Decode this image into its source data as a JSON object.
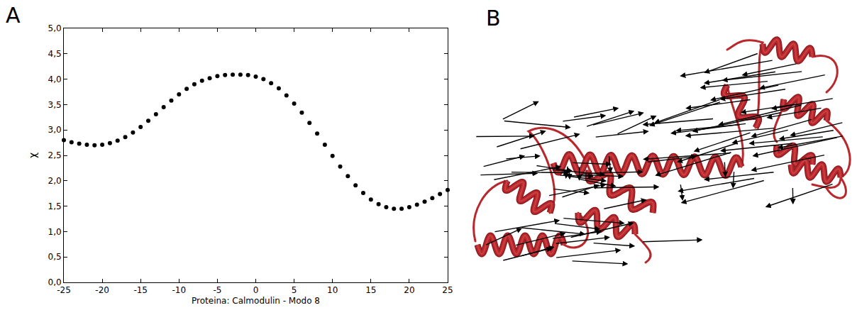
{
  "panel_labels": [
    "A",
    "B"
  ],
  "chart_data": {
    "type": "scatter",
    "x_label": "Proteina: Calmodulin - Modo 8",
    "y_label": "χ",
    "x": [
      -25,
      -24,
      -23,
      -22,
      -21,
      -20,
      -19,
      -18,
      -17,
      -16,
      -15,
      -14,
      -13,
      -12,
      -11,
      -10,
      -9,
      -8,
      -7,
      -6,
      -5,
      -4,
      -3,
      -2,
      -1,
      0,
      1,
      2,
      3,
      4,
      5,
      6,
      7,
      8,
      9,
      10,
      11,
      12,
      13,
      14,
      15,
      16,
      17,
      18,
      19,
      20,
      21,
      22,
      23,
      24,
      25
    ],
    "values": [
      2.8,
      2.76,
      2.73,
      2.71,
      2.7,
      2.71,
      2.74,
      2.79,
      2.86,
      2.95,
      3.06,
      3.18,
      3.31,
      3.45,
      3.58,
      3.7,
      3.81,
      3.9,
      3.97,
      4.02,
      4.06,
      4.08,
      4.09,
      4.09,
      4.08,
      4.05,
      4.0,
      3.92,
      3.82,
      3.68,
      3.52,
      3.34,
      3.14,
      2.93,
      2.71,
      2.49,
      2.28,
      2.09,
      1.91,
      1.76,
      1.63,
      1.54,
      1.48,
      1.45,
      1.45,
      1.48,
      1.53,
      1.59,
      1.66,
      1.74,
      1.82
    ],
    "color": "#000000",
    "marker": "circle",
    "xlim": [
      -25,
      25
    ],
    "ylim": [
      0,
      5
    ],
    "xticks": [
      -25,
      -20,
      -15,
      -10,
      -5,
      0,
      5,
      10,
      15,
      20,
      25
    ],
    "yticks": [
      {
        "value": 0,
        "label": "0,0"
      },
      {
        "value": 0.5,
        "label": "0,5"
      },
      {
        "value": 1,
        "label": "1,0"
      },
      {
        "value": 1.5,
        "label": "1,5"
      },
      {
        "value": 2,
        "label": "2,0"
      },
      {
        "value": 2.5,
        "label": "2,5"
      },
      {
        "value": 3,
        "label": "3,0"
      },
      {
        "value": 3.5,
        "label": "3,5"
      },
      {
        "value": 4,
        "label": "4,0"
      },
      {
        "value": 4.5,
        "label": "4,5"
      },
      {
        "value": 5,
        "label": "5,0"
      }
    ],
    "grid": false
  }
}
